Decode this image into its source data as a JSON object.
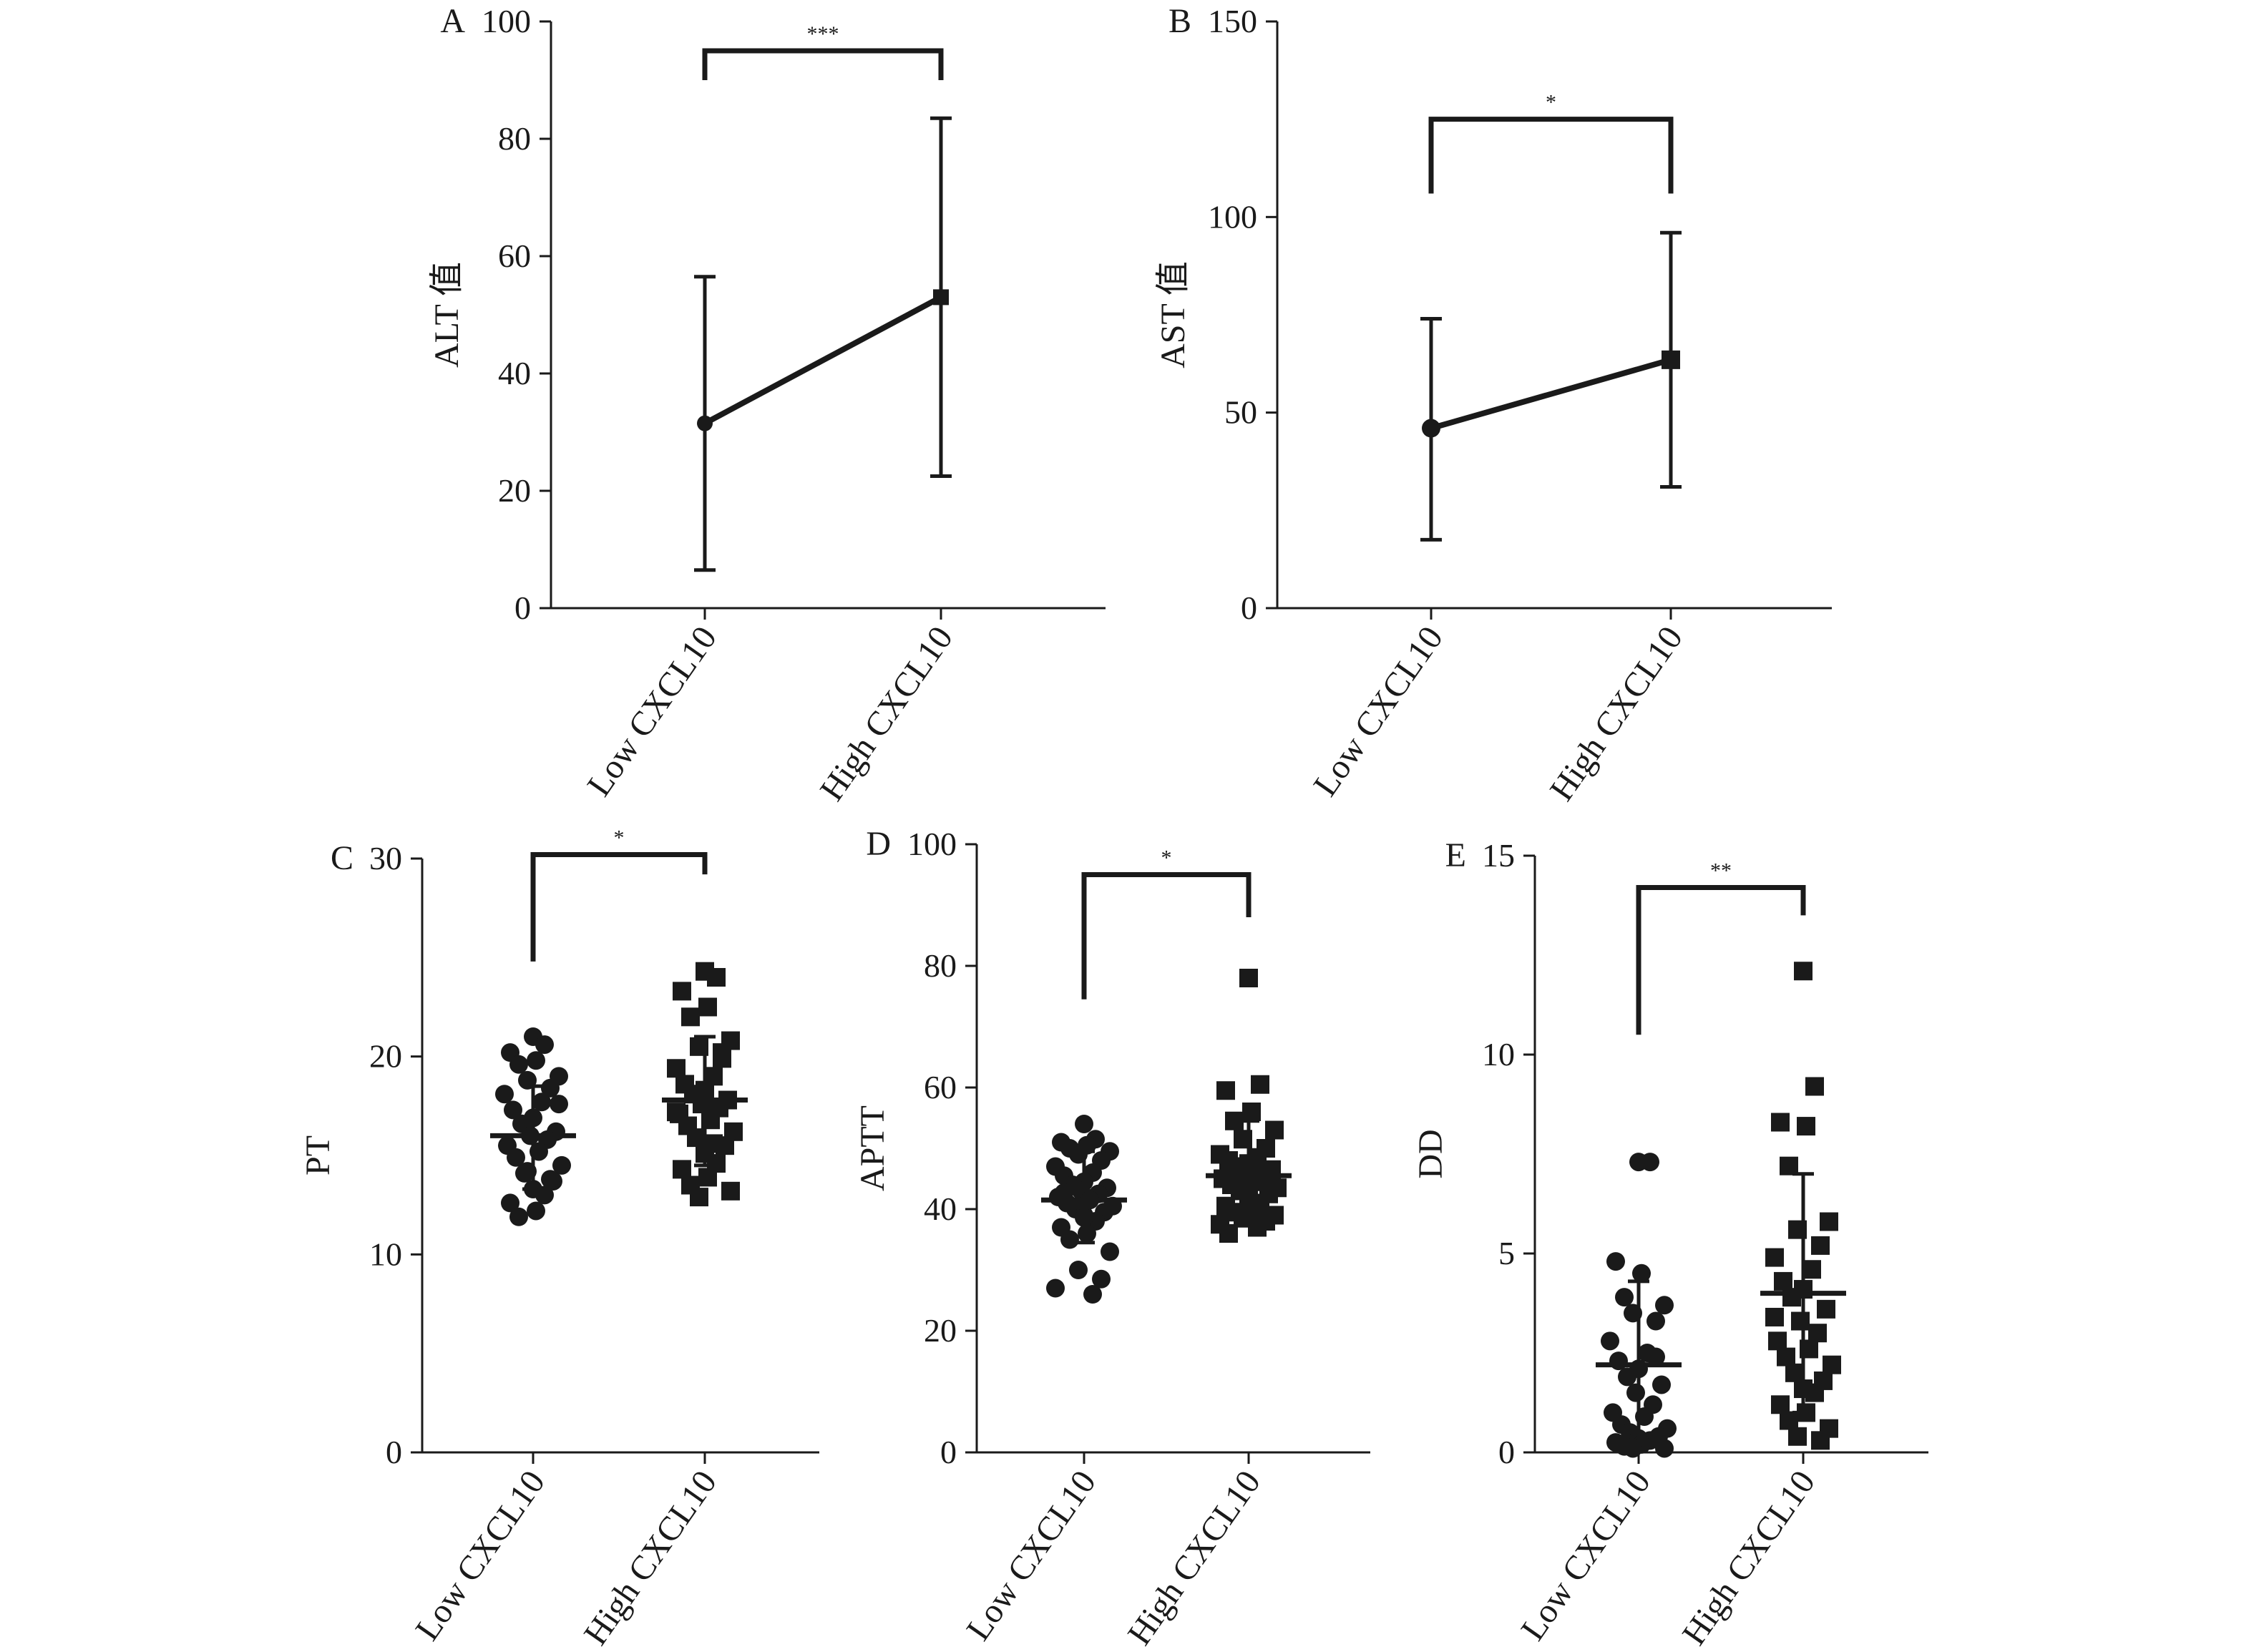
{
  "figure": {
    "categories": [
      "Low CXCL10",
      "High CXCL10"
    ]
  },
  "chart_data": [
    {
      "id": "A",
      "type": "line",
      "panel_label": "A",
      "ylabel": "ALT 值",
      "ylim": [
        0,
        100
      ],
      "yticks": [
        0,
        20,
        40,
        60,
        80,
        100
      ],
      "categories": [
        "Low CXCL10",
        "High CXCL10"
      ],
      "markers": [
        "circle",
        "square"
      ],
      "means": [
        31.5,
        53
      ],
      "err_low": [
        6.5,
        22.5
      ],
      "err_high": [
        56.5,
        83.5
      ],
      "significance": {
        "label": "***",
        "y_top": 95,
        "left_drop": 90,
        "right_drop": 90
      }
    },
    {
      "id": "B",
      "type": "line",
      "panel_label": "B",
      "ylabel": "AST 值",
      "ylim": [
        0,
        150
      ],
      "yticks": [
        0,
        50,
        100,
        150
      ],
      "categories": [
        "Low CXCL10",
        "High CXCL10"
      ],
      "markers": [
        "circle",
        "square"
      ],
      "means": [
        46,
        63.5
      ],
      "err_low": [
        17.5,
        31
      ],
      "err_high": [
        74,
        96
      ],
      "significance": {
        "label": "*",
        "y_top": 125,
        "left_drop": 106,
        "right_drop": 106
      }
    },
    {
      "id": "C",
      "type": "scatter",
      "panel_label": "C",
      "ylabel": "PT",
      "ylim": [
        0,
        30
      ],
      "yticks": [
        0,
        10,
        20,
        30
      ],
      "categories": [
        "Low CXCL10",
        "High CXCL10"
      ],
      "markers": [
        "circle",
        "square"
      ],
      "means": [
        16,
        17.8
      ],
      "err_low": [
        13.3,
        14.5
      ],
      "err_high": [
        18.5,
        21
      ],
      "significance": {
        "label": "*",
        "y_top": 30.2,
        "left_drop": 24.8,
        "right_drop": 29.2
      },
      "points": [
        [
          21,
          20.6,
          20.2,
          19.8,
          19.6,
          19,
          18.8,
          18.4,
          18.1,
          17.7,
          17.3,
          16.9,
          16.6,
          16.2,
          16,
          15.8,
          15.5,
          15.2,
          14.9,
          14.5,
          14.1,
          13.7,
          13.3,
          13,
          12.6,
          12.2,
          11.9,
          17.6,
          14.2,
          13.8
        ],
        [
          24.3,
          24,
          23.3,
          22.5,
          22,
          20.8,
          20.5,
          19.9,
          19.4,
          19,
          18.6,
          18.3,
          18.1,
          17.8,
          17.6,
          17.4,
          17.1,
          16.8,
          16.5,
          16.2,
          15.9,
          15.5,
          15.1,
          14.6,
          14.3,
          13.9,
          13.5,
          13.2,
          12.9,
          20.2,
          17.2,
          15.6
        ]
      ]
    },
    {
      "id": "D",
      "type": "scatter",
      "panel_label": "D",
      "ylabel": "APTT",
      "ylim": [
        0,
        100
      ],
      "yticks": [
        0,
        20,
        40,
        60,
        80,
        100
      ],
      "categories": [
        "Low CXCL10",
        "High CXCL10"
      ],
      "markers": [
        "circle",
        "square"
      ],
      "means": [
        41.5,
        45.5
      ],
      "err_low": [
        34.5,
        37.5
      ],
      "err_high": [
        49.5,
        54.5
      ],
      "significance": {
        "label": "*",
        "y_top": 95,
        "left_drop": 74.5,
        "right_drop": 88
      },
      "points": [
        [
          54,
          51.5,
          51,
          50.5,
          50,
          49.5,
          49,
          48,
          47,
          46,
          45.5,
          44.5,
          44,
          43.5,
          43,
          42.5,
          42,
          41.5,
          41,
          40.5,
          40,
          39.5,
          39,
          38,
          37,
          36,
          35,
          33,
          30,
          28.5,
          27,
          26,
          42.7,
          38.6
        ],
        [
          78,
          60.5,
          59.5,
          56,
          54.5,
          53,
          51.5,
          50,
          49,
          48.5,
          48,
          47.5,
          47,
          46.5,
          46,
          45.5,
          45,
          44.5,
          44,
          43.5,
          43,
          42.5,
          42,
          41,
          40.5,
          40,
          39.5,
          39,
          38.5,
          38,
          37.5,
          37,
          36,
          45.8
        ]
      ]
    },
    {
      "id": "E",
      "type": "scatter",
      "panel_label": "E",
      "ylabel": "DD",
      "ylim": [
        0,
        15
      ],
      "yticks": [
        0,
        5,
        10,
        15
      ],
      "categories": [
        "Low CXCL10",
        "High CXCL10"
      ],
      "markers": [
        "circle",
        "square"
      ],
      "means": [
        2.2,
        4
      ],
      "err_low": [
        0.3,
        1
      ],
      "err_high": [
        4.3,
        7
      ],
      "significance": {
        "label": "**",
        "y_top": 14.2,
        "left_drop": 10.5,
        "right_drop": 13.5
      },
      "points": [
        [
          7.3,
          7.3,
          4.8,
          4.5,
          3.9,
          3.7,
          3.5,
          3.3,
          2.8,
          2.5,
          2.3,
          2.1,
          1.9,
          1.7,
          1.5,
          1.2,
          1,
          0.9,
          0.7,
          0.6,
          0.5,
          0.4,
          0.35,
          0.3,
          0.25,
          0.2,
          0.15,
          0.1,
          0.1,
          2.4
        ],
        [
          12.1,
          9.2,
          8.3,
          8.2,
          7.2,
          5.8,
          5.6,
          5.2,
          4.9,
          4.6,
          4.3,
          4.1,
          3.9,
          3.6,
          3.3,
          3,
          2.8,
          2.6,
          2.4,
          2.2,
          2,
          1.8,
          1.6,
          1.5,
          1.2,
          1,
          0.8,
          0.6,
          0.4,
          0.3,
          3.4
        ]
      ]
    }
  ]
}
